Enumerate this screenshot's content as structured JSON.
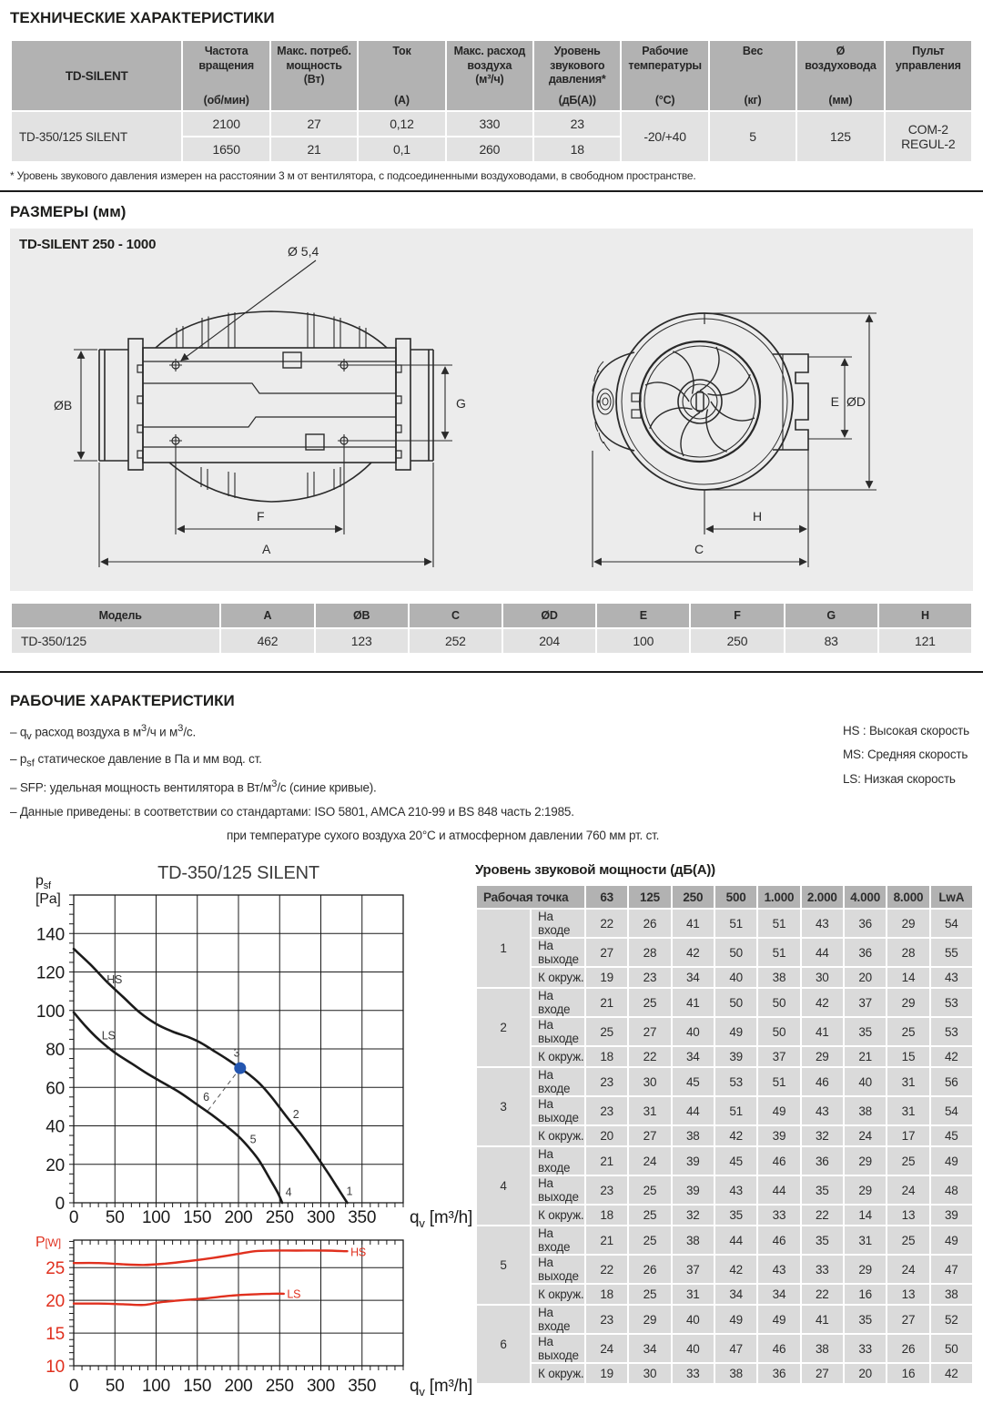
{
  "colors": {
    "head_bg": "#b2b2b2",
    "cell_bg": "#e2e2e2",
    "sound_cell_bg": "#dadada",
    "panel_bg": "#ececec",
    "line_black": "#1b1b1b",
    "curve_red": "#e0301e",
    "point_blue": "#2456b0"
  },
  "tech": {
    "heading": "ТЕХНИЧЕСКИЕ ХАРАКТЕРИСТИКИ",
    "table": {
      "model_header": "TD-SILENT",
      "columns": [
        {
          "title_lines": [
            "Частота",
            "вращения"
          ],
          "unit": "(об/мин)"
        },
        {
          "title_lines": [
            "Макс. потреб.",
            "мощность",
            "(Вт)"
          ],
          "unit": ""
        },
        {
          "title_lines": [
            "Ток"
          ],
          "unit": "(А)"
        },
        {
          "title_lines": [
            "Макс. расход",
            "воздуха",
            "(м³/ч)"
          ],
          "unit": ""
        },
        {
          "title_lines": [
            "Уровень",
            "звукового",
            "давления*"
          ],
          "unit": "(дБ(А))"
        },
        {
          "title_lines": [
            "Рабочие",
            "температуры"
          ],
          "unit": "(°С)"
        },
        {
          "title_lines": [
            "Вес"
          ],
          "unit": "(кг)"
        },
        {
          "title_lines": [
            "Ø",
            "воздуховода"
          ],
          "unit": "(мм)"
        },
        {
          "title_lines": [
            "Пульт",
            "управления"
          ],
          "unit": ""
        }
      ],
      "model": "TD-350/125 SILENT",
      "speed_rows": [
        [
          "2100",
          "27",
          "0,12",
          "330",
          "23"
        ],
        [
          "1650",
          "21",
          "0,1",
          "260",
          "18"
        ]
      ],
      "shared": {
        "temperature": "-20/+40",
        "weight": "5",
        "duct_diameter": "125",
        "remote_lines": [
          "COM-2",
          "REGUL-2"
        ]
      }
    },
    "footnote": "* Уровень звукового давления измерен на расстоянии 3 м от вентилятора, с подсоединенными воздуховодами, в свободном пространстве."
  },
  "dims": {
    "heading": "РАЗМЕРЫ (мм)",
    "panel_label": "TD-SILENT 250 - 1000",
    "labels": {
      "hole": "Ø 5,4",
      "ob": "ØB",
      "g": "G",
      "f": "F",
      "a": "A",
      "e": "E",
      "od": "ØD",
      "h": "H",
      "c": "C"
    },
    "table": {
      "headers": [
        "Модель",
        "A",
        "ØB",
        "C",
        "ØD",
        "E",
        "F",
        "G",
        "H"
      ],
      "row": [
        "TD-350/125",
        "462",
        "123",
        "252",
        "204",
        "100",
        "250",
        "83",
        "121"
      ]
    }
  },
  "performance": {
    "heading": "РАБОЧИЕ ХАРАКТЕРИСТИКИ",
    "notes": [
      {
        "indent": false,
        "segs": [
          {
            "t": "– q"
          },
          {
            "t": "v",
            "sub": true
          },
          {
            "t": " расход воздуха в м"
          },
          {
            "t": "3",
            "sup": true
          },
          {
            "t": "/ч и м"
          },
          {
            "t": "3",
            "sup": true
          },
          {
            "t": "/с."
          }
        ]
      },
      {
        "indent": false,
        "segs": [
          {
            "t": "– p"
          },
          {
            "t": "sf",
            "sub": true
          },
          {
            "t": "  статическое давление в Па и мм вод. ст."
          }
        ]
      },
      {
        "indent": false,
        "segs": [
          {
            "t": "– SFP: удельная мощность вентилятора в Вт/м"
          },
          {
            "t": "3",
            "sup": true
          },
          {
            "t": "/с (синие кривые)."
          }
        ]
      },
      {
        "indent": false,
        "segs": [
          {
            "t": "– Данные приведены: в соответствии со стандартами: ISO 5801, AMCA 210-99 и BS 848 часть 2:1985."
          }
        ]
      },
      {
        "indent": true,
        "segs": [
          {
            "t": "при температуре сухого воздуха 20°С и атмосферном давлении 760 мм рт. ст."
          }
        ]
      }
    ],
    "legend": [
      "HS : Высокая скорость",
      "MS: Средняя скорость",
      "LS: Низкая скорость"
    ]
  },
  "chart_data": [
    {
      "type": "line",
      "title": "TD-350/125 SILENT",
      "ylabel": {
        "main": "p",
        "sub": "sf",
        "unit": "[Pa]"
      },
      "xlabel": {
        "main": "q",
        "sub": "v",
        "rest": " [m³/h]"
      },
      "xlim": [
        0,
        400
      ],
      "ylim": [
        0,
        160
      ],
      "xticks": [
        0,
        50,
        100,
        150,
        200,
        250,
        300,
        350
      ],
      "yticks": [
        0,
        20,
        40,
        60,
        80,
        100,
        120,
        140
      ],
      "grid": true,
      "series": [
        {
          "name": "HS",
          "points": [
            [
              0,
              132
            ],
            [
              20,
              124
            ],
            [
              40,
              115
            ],
            [
              60,
              107
            ],
            [
              80,
              99
            ],
            [
              100,
              93
            ],
            [
              120,
              89
            ],
            [
              140,
              86
            ],
            [
              155,
              83
            ],
            [
              170,
              79
            ],
            [
              185,
              75
            ],
            [
              202,
              70
            ],
            [
              215,
              66
            ],
            [
              228,
              61
            ],
            [
              242,
              54
            ],
            [
              258,
              45
            ],
            [
              275,
              36
            ],
            [
              292,
              26
            ],
            [
              308,
              16
            ],
            [
              320,
              8
            ],
            [
              332,
              0
            ]
          ]
        },
        {
          "name": "LS",
          "points": [
            [
              0,
              99
            ],
            [
              15,
              91.5
            ],
            [
              30,
              85
            ],
            [
              50,
              78
            ],
            [
              70,
              72.5
            ],
            [
              90,
              67
            ],
            [
              110,
              62
            ],
            [
              130,
              57
            ],
            [
              150,
              51
            ],
            [
              170,
              45
            ],
            [
              185,
              40
            ],
            [
              200,
              34.5
            ],
            [
              212,
              29
            ],
            [
              225,
              22
            ],
            [
              238,
              12.5
            ],
            [
              248,
              5
            ],
            [
              253,
              0
            ]
          ]
        }
      ],
      "curve_labels": [
        {
          "text": "HS",
          "x": 40,
          "y": 114
        },
        {
          "text": "LS",
          "x": 34,
          "y": 85
        },
        {
          "text": "3",
          "x": 194,
          "y": 76
        },
        {
          "text": "2",
          "x": 266,
          "y": 44
        },
        {
          "text": "1",
          "x": 331,
          "y": 4
        },
        {
          "text": "6",
          "x": 157,
          "y": 53
        },
        {
          "text": "5",
          "x": 214,
          "y": 31
        },
        {
          "text": "4",
          "x": 257,
          "y": 3.5
        }
      ],
      "operating_point": {
        "x": 202,
        "y": 70
      },
      "dashed_line": [
        [
          163,
          48
        ],
        [
          202,
          70
        ]
      ]
    },
    {
      "type": "line",
      "title": "",
      "ylabel": {
        "main": "P",
        "unit": "[W]"
      },
      "xlabel": {
        "main": "q",
        "sub": "v",
        "rest": " [m³/h]"
      },
      "xlim": [
        0,
        400
      ],
      "ylim": [
        10,
        29.2
      ],
      "xticks": [
        0,
        50,
        100,
        150,
        200,
        250,
        300,
        350
      ],
      "yticks": [
        10,
        15,
        20,
        25
      ],
      "grid": true,
      "series": [
        {
          "name": "HS",
          "label_at": [
            336,
            27.3
          ],
          "points": [
            [
              0,
              25.7
            ],
            [
              30,
              25.7
            ],
            [
              60,
              25.5
            ],
            [
              85,
              25.4
            ],
            [
              110,
              25.6
            ],
            [
              140,
              26
            ],
            [
              170,
              26.5
            ],
            [
              200,
              27.1
            ],
            [
              220,
              27.5
            ],
            [
              240,
              27.6
            ],
            [
              270,
              27.6
            ],
            [
              305,
              27.6
            ],
            [
              332,
              27.5
            ]
          ]
        },
        {
          "name": "LS",
          "label_at": [
            259,
            20.9
          ],
          "points": [
            [
              0,
              19.5
            ],
            [
              30,
              19.5
            ],
            [
              60,
              19.4
            ],
            [
              85,
              19.3
            ],
            [
              105,
              19.7
            ],
            [
              130,
              20
            ],
            [
              160,
              20.3
            ],
            [
              190,
              20.7
            ],
            [
              215,
              20.9
            ],
            [
              240,
              21
            ],
            [
              255,
              21
            ]
          ]
        }
      ]
    }
  ],
  "sound_table": {
    "title": "Уровень звуковой мощности (дБ(А))",
    "corner_header": "Рабочая точка",
    "freq_headers": [
      "63",
      "125",
      "250",
      "500",
      "1.000",
      "2.000",
      "4.000",
      "8.000",
      "LwA"
    ],
    "row_labels": [
      "На входе",
      "На выходе",
      "К окруж."
    ],
    "points": [
      {
        "n": "1",
        "rows": [
          [
            22,
            26,
            41,
            51,
            51,
            43,
            36,
            29,
            54
          ],
          [
            27,
            28,
            42,
            50,
            51,
            44,
            36,
            28,
            55
          ],
          [
            19,
            23,
            34,
            40,
            38,
            30,
            20,
            14,
            43
          ]
        ]
      },
      {
        "n": "2",
        "rows": [
          [
            21,
            25,
            41,
            50,
            50,
            42,
            37,
            29,
            53
          ],
          [
            25,
            27,
            40,
            49,
            50,
            41,
            35,
            25,
            53
          ],
          [
            18,
            22,
            34,
            39,
            37,
            29,
            21,
            15,
            42
          ]
        ]
      },
      {
        "n": "3",
        "rows": [
          [
            23,
            30,
            45,
            53,
            51,
            46,
            40,
            31,
            56
          ],
          [
            23,
            31,
            44,
            51,
            49,
            43,
            38,
            31,
            54
          ],
          [
            20,
            27,
            38,
            42,
            39,
            32,
            24,
            17,
            45
          ]
        ]
      },
      {
        "n": "4",
        "rows": [
          [
            21,
            24,
            39,
            45,
            46,
            36,
            29,
            25,
            49
          ],
          [
            23,
            25,
            39,
            43,
            44,
            35,
            29,
            24,
            48
          ],
          [
            18,
            25,
            32,
            35,
            33,
            22,
            14,
            13,
            39
          ]
        ]
      },
      {
        "n": "5",
        "rows": [
          [
            21,
            25,
            38,
            44,
            46,
            35,
            31,
            25,
            49
          ],
          [
            22,
            26,
            37,
            42,
            43,
            33,
            29,
            24,
            47
          ],
          [
            18,
            25,
            31,
            34,
            34,
            22,
            16,
            13,
            38
          ]
        ]
      },
      {
        "n": "6",
        "rows": [
          [
            23,
            29,
            40,
            49,
            49,
            41,
            35,
            27,
            52
          ],
          [
            24,
            34,
            40,
            47,
            46,
            38,
            33,
            26,
            50
          ],
          [
            19,
            30,
            33,
            38,
            36,
            27,
            20,
            16,
            42
          ]
        ]
      }
    ]
  }
}
